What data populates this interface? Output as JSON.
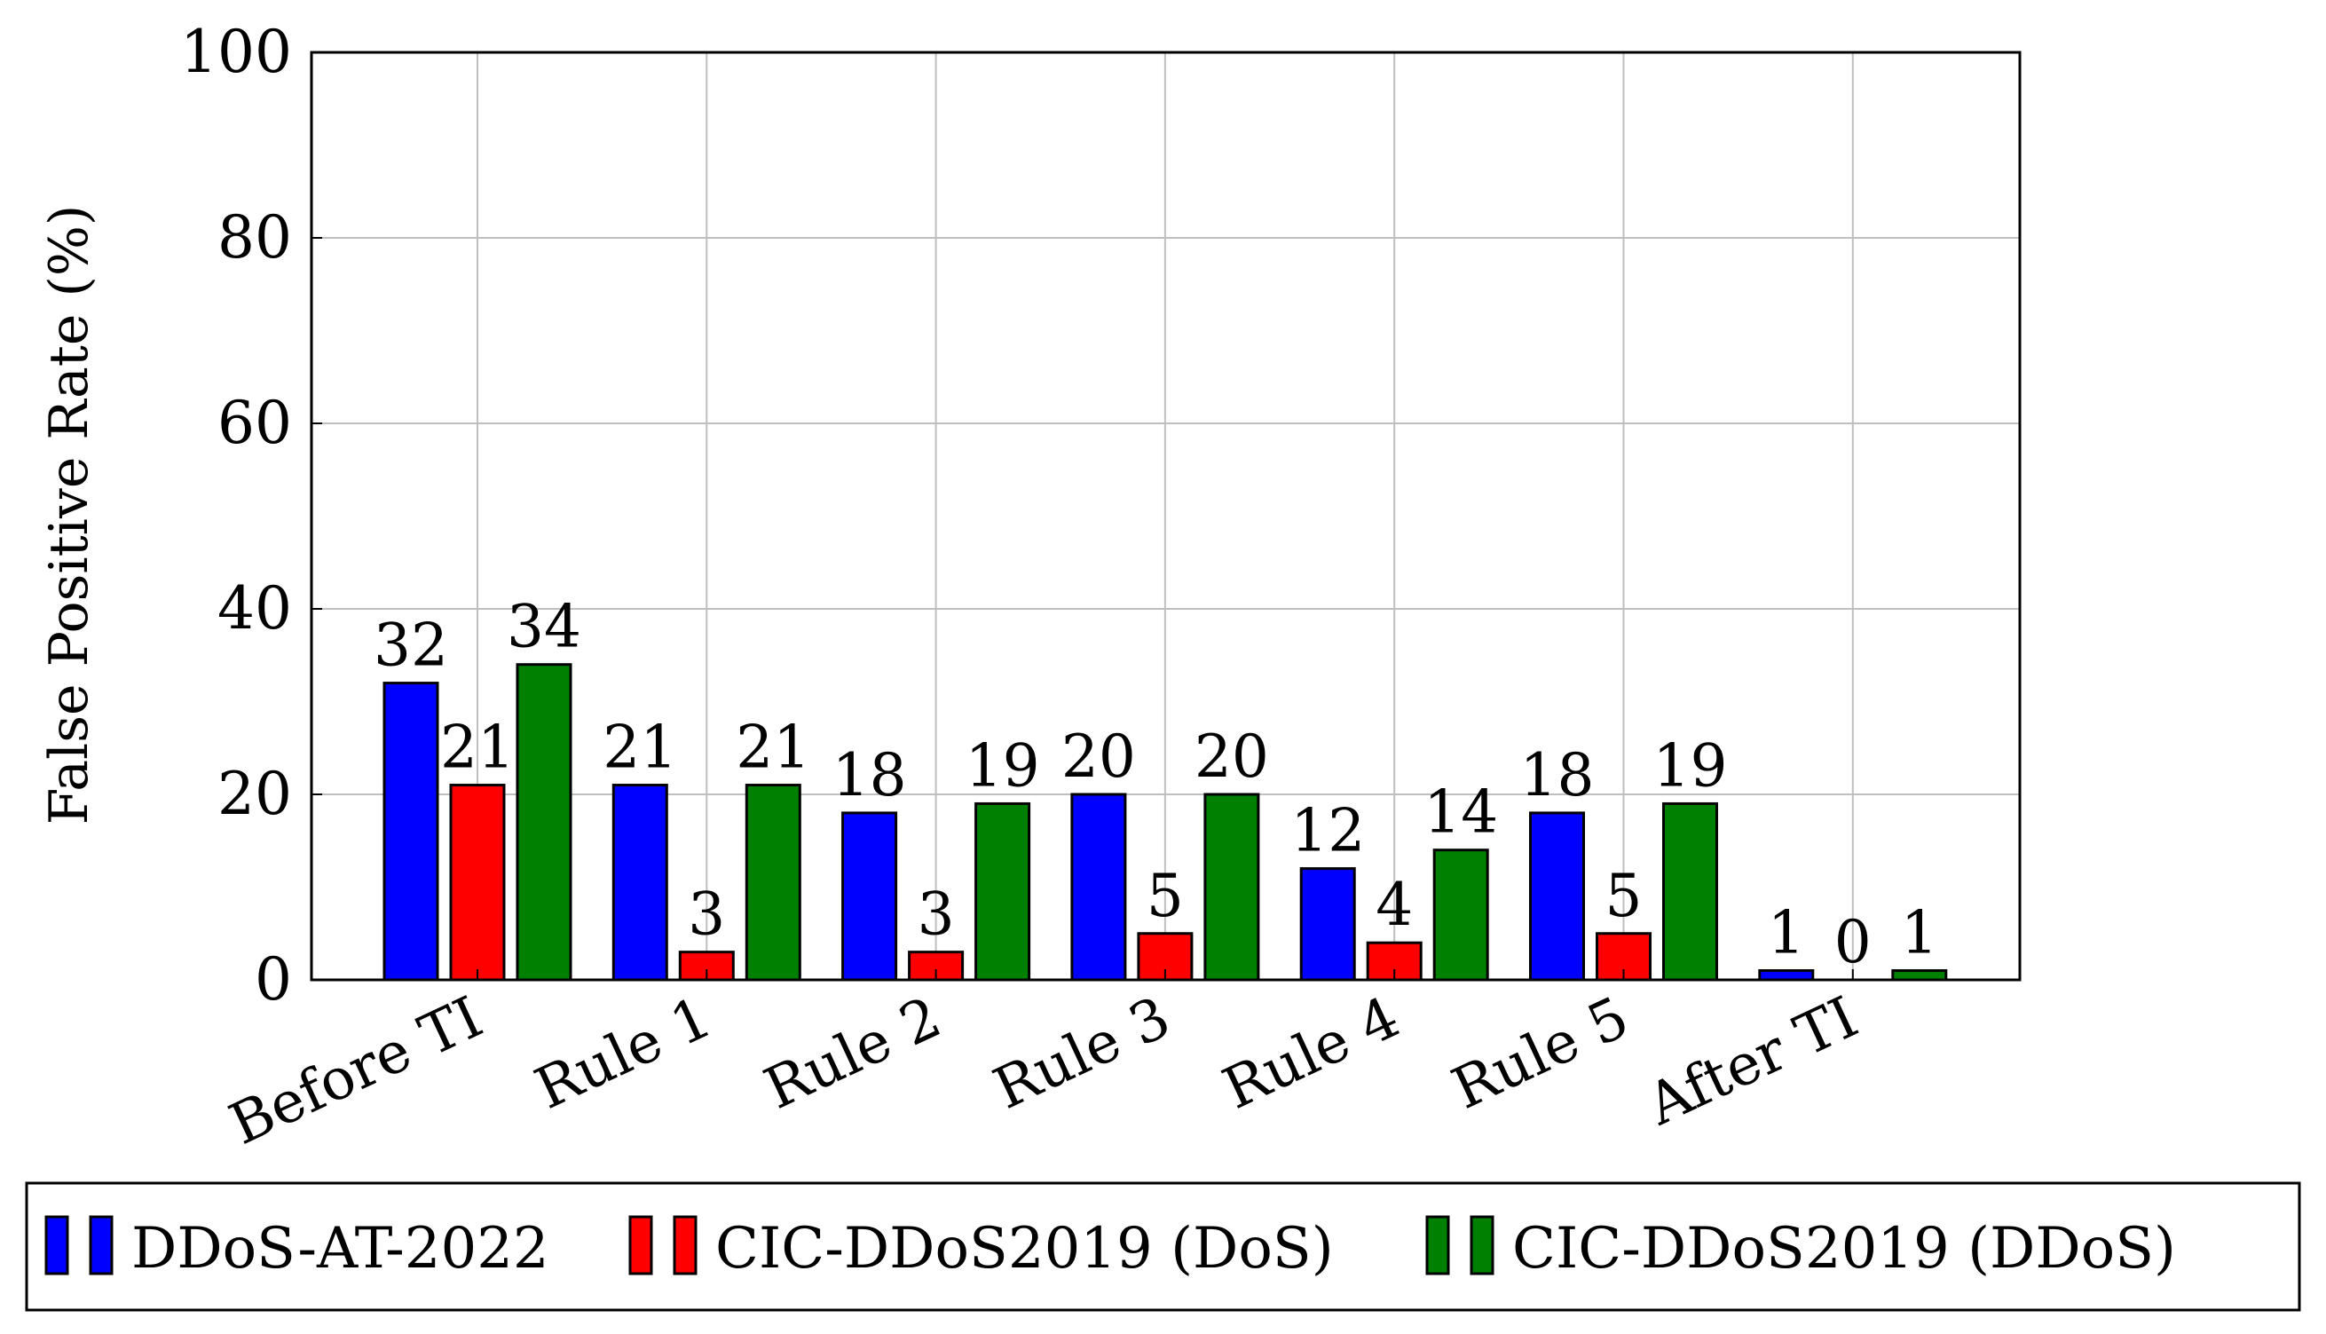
{
  "chart_data": {
    "type": "bar",
    "title": "",
    "xlabel": "",
    "ylabel": "False Positive Rate (%)",
    "ylim": [
      0,
      100
    ],
    "yticks": [
      0,
      20,
      40,
      60,
      80,
      100
    ],
    "grid": true,
    "legend_position": "bottom",
    "categories": [
      "Before TI",
      "Rule 1",
      "Rule 2",
      "Rule 3",
      "Rule 4",
      "Rule 5",
      "After TI"
    ],
    "series": [
      {
        "name": "DDoS-AT-2022",
        "color": "#0000ff",
        "values": [
          32,
          21,
          18,
          20,
          12,
          18,
          1
        ]
      },
      {
        "name": "CIC-DDoS2019 (DoS)",
        "color": "#ff0000",
        "values": [
          21,
          3,
          3,
          5,
          4,
          5,
          0
        ]
      },
      {
        "name": "CIC-DDoS2019 (DDoS)",
        "color": "#008000",
        "values": [
          34,
          21,
          19,
          20,
          14,
          19,
          1
        ]
      }
    ]
  }
}
